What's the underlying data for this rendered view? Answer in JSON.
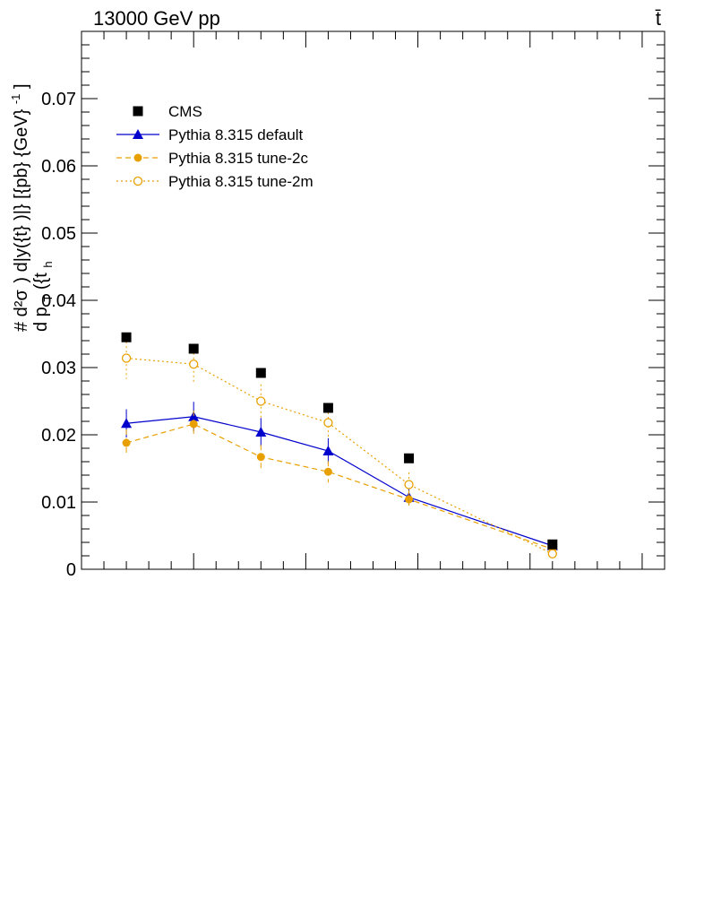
{
  "header": {
    "left_label": "13000 GeV pp",
    "right_label": "t̄"
  },
  "chart_data": {
    "type": "scatter",
    "ylabel": "#frac{d^{2}σ}{d p_{T}({t}_{h}) d|y({t}_{h})|} [{pb} {GeV}^{-1}]",
    "ylabel_parts": {
      "prefix": "#",
      "numerator": "d²σ",
      "denominator": "d p",
      "denominator_sub": "T",
      "denominator_tail": "({t",
      "sub_h": "h",
      "middle": ") d|y({t}",
      "tail": ")|} [{pb} {GeV}",
      "exponent": "-1",
      "closing": "]"
    },
    "xlabel": "",
    "xlim": [
      0,
      13
    ],
    "ylim": [
      0,
      0.08
    ],
    "yticks": [
      {
        "value": 0,
        "label": "0"
      },
      {
        "value": 0.01,
        "label": "0.01"
      },
      {
        "value": 0.02,
        "label": "0.02"
      },
      {
        "value": 0.03,
        "label": "0.03"
      },
      {
        "value": 0.04,
        "label": "0.04"
      },
      {
        "value": 0.05,
        "label": "0.05"
      },
      {
        "value": 0.06,
        "label": "0.06"
      },
      {
        "value": 0.07,
        "label": "0.07"
      }
    ],
    "legend_position": "top-left",
    "x": [
      1.0,
      2.5,
      4.0,
      5.5,
      7.3,
      10.5
    ],
    "series": [
      {
        "name": "CMS",
        "color": "#000000",
        "marker": "filled-square",
        "line": "none",
        "values": [
          0.0345,
          0.0328,
          0.0292,
          0.024,
          0.0165,
          0.0037
        ],
        "errors": [
          0.0005,
          0.0005,
          0.0005,
          0.0004,
          0.0004,
          0.0002
        ]
      },
      {
        "name": "Pythia 8.315 default",
        "color": "#0000cc",
        "marker": "filled-triangle",
        "line": "solid",
        "values": [
          0.0217,
          0.0227,
          0.0204,
          0.0176,
          0.0107,
          0.0035
        ],
        "errors": [
          0.0021,
          0.0022,
          0.0021,
          0.0019,
          0.0012,
          0.0004
        ]
      },
      {
        "name": "Pythia 8.315 tune-2c",
        "color": "#e8a000",
        "marker": "filled-circle",
        "line": "dashed",
        "values": [
          0.0188,
          0.0216,
          0.0167,
          0.0145,
          0.0104,
          0.003
        ],
        "errors": [
          0.002,
          0.002,
          0.0018,
          0.0016,
          0.0012,
          0.0004
        ]
      },
      {
        "name": "Pythia 8.315 tune-2m",
        "color": "#e8a000",
        "marker": "open-circle",
        "line": "dotted",
        "values": [
          0.0314,
          0.0305,
          0.025,
          0.0218,
          0.0126,
          0.0023
        ],
        "errors": [
          0.0031,
          0.003,
          0.0025,
          0.0022,
          0.0018,
          0.0004
        ]
      }
    ]
  }
}
